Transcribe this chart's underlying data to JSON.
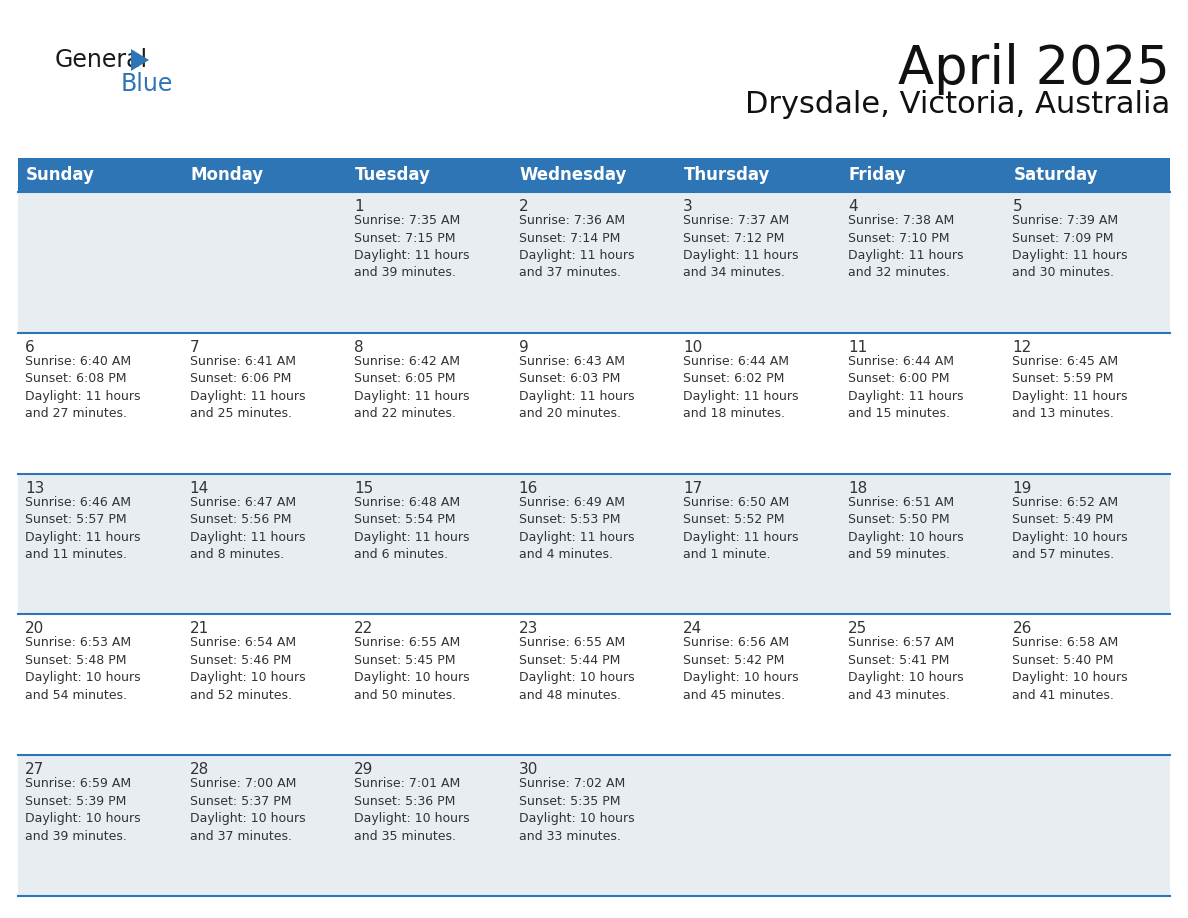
{
  "title": "April 2025",
  "subtitle": "Drysdale, Victoria, Australia",
  "header_bg": "#2e75b6",
  "header_text": "#ffffff",
  "row_line_color": "#2e75b6",
  "cell_bg_light": "#e8edf2",
  "cell_bg_white": "#ffffff",
  "text_color": "#333333",
  "days_of_week": [
    "Sunday",
    "Monday",
    "Tuesday",
    "Wednesday",
    "Thursday",
    "Friday",
    "Saturday"
  ],
  "calendar": [
    [
      {
        "day": "",
        "info": ""
      },
      {
        "day": "",
        "info": ""
      },
      {
        "day": "1",
        "info": "Sunrise: 7:35 AM\nSunset: 7:15 PM\nDaylight: 11 hours\nand 39 minutes."
      },
      {
        "day": "2",
        "info": "Sunrise: 7:36 AM\nSunset: 7:14 PM\nDaylight: 11 hours\nand 37 minutes."
      },
      {
        "day": "3",
        "info": "Sunrise: 7:37 AM\nSunset: 7:12 PM\nDaylight: 11 hours\nand 34 minutes."
      },
      {
        "day": "4",
        "info": "Sunrise: 7:38 AM\nSunset: 7:10 PM\nDaylight: 11 hours\nand 32 minutes."
      },
      {
        "day": "5",
        "info": "Sunrise: 7:39 AM\nSunset: 7:09 PM\nDaylight: 11 hours\nand 30 minutes."
      }
    ],
    [
      {
        "day": "6",
        "info": "Sunrise: 6:40 AM\nSunset: 6:08 PM\nDaylight: 11 hours\nand 27 minutes."
      },
      {
        "day": "7",
        "info": "Sunrise: 6:41 AM\nSunset: 6:06 PM\nDaylight: 11 hours\nand 25 minutes."
      },
      {
        "day": "8",
        "info": "Sunrise: 6:42 AM\nSunset: 6:05 PM\nDaylight: 11 hours\nand 22 minutes."
      },
      {
        "day": "9",
        "info": "Sunrise: 6:43 AM\nSunset: 6:03 PM\nDaylight: 11 hours\nand 20 minutes."
      },
      {
        "day": "10",
        "info": "Sunrise: 6:44 AM\nSunset: 6:02 PM\nDaylight: 11 hours\nand 18 minutes."
      },
      {
        "day": "11",
        "info": "Sunrise: 6:44 AM\nSunset: 6:00 PM\nDaylight: 11 hours\nand 15 minutes."
      },
      {
        "day": "12",
        "info": "Sunrise: 6:45 AM\nSunset: 5:59 PM\nDaylight: 11 hours\nand 13 minutes."
      }
    ],
    [
      {
        "day": "13",
        "info": "Sunrise: 6:46 AM\nSunset: 5:57 PM\nDaylight: 11 hours\nand 11 minutes."
      },
      {
        "day": "14",
        "info": "Sunrise: 6:47 AM\nSunset: 5:56 PM\nDaylight: 11 hours\nand 8 minutes."
      },
      {
        "day": "15",
        "info": "Sunrise: 6:48 AM\nSunset: 5:54 PM\nDaylight: 11 hours\nand 6 minutes."
      },
      {
        "day": "16",
        "info": "Sunrise: 6:49 AM\nSunset: 5:53 PM\nDaylight: 11 hours\nand 4 minutes."
      },
      {
        "day": "17",
        "info": "Sunrise: 6:50 AM\nSunset: 5:52 PM\nDaylight: 11 hours\nand 1 minute."
      },
      {
        "day": "18",
        "info": "Sunrise: 6:51 AM\nSunset: 5:50 PM\nDaylight: 10 hours\nand 59 minutes."
      },
      {
        "day": "19",
        "info": "Sunrise: 6:52 AM\nSunset: 5:49 PM\nDaylight: 10 hours\nand 57 minutes."
      }
    ],
    [
      {
        "day": "20",
        "info": "Sunrise: 6:53 AM\nSunset: 5:48 PM\nDaylight: 10 hours\nand 54 minutes."
      },
      {
        "day": "21",
        "info": "Sunrise: 6:54 AM\nSunset: 5:46 PM\nDaylight: 10 hours\nand 52 minutes."
      },
      {
        "day": "22",
        "info": "Sunrise: 6:55 AM\nSunset: 5:45 PM\nDaylight: 10 hours\nand 50 minutes."
      },
      {
        "day": "23",
        "info": "Sunrise: 6:55 AM\nSunset: 5:44 PM\nDaylight: 10 hours\nand 48 minutes."
      },
      {
        "day": "24",
        "info": "Sunrise: 6:56 AM\nSunset: 5:42 PM\nDaylight: 10 hours\nand 45 minutes."
      },
      {
        "day": "25",
        "info": "Sunrise: 6:57 AM\nSunset: 5:41 PM\nDaylight: 10 hours\nand 43 minutes."
      },
      {
        "day": "26",
        "info": "Sunrise: 6:58 AM\nSunset: 5:40 PM\nDaylight: 10 hours\nand 41 minutes."
      }
    ],
    [
      {
        "day": "27",
        "info": "Sunrise: 6:59 AM\nSunset: 5:39 PM\nDaylight: 10 hours\nand 39 minutes."
      },
      {
        "day": "28",
        "info": "Sunrise: 7:00 AM\nSunset: 5:37 PM\nDaylight: 10 hours\nand 37 minutes."
      },
      {
        "day": "29",
        "info": "Sunrise: 7:01 AM\nSunset: 5:36 PM\nDaylight: 10 hours\nand 35 minutes."
      },
      {
        "day": "30",
        "info": "Sunrise: 7:02 AM\nSunset: 5:35 PM\nDaylight: 10 hours\nand 33 minutes."
      },
      {
        "day": "",
        "info": ""
      },
      {
        "day": "",
        "info": ""
      },
      {
        "day": "",
        "info": ""
      }
    ]
  ],
  "logo_general_color": "#1a1a1a",
  "logo_blue_color": "#2e75b6",
  "logo_triangle_color": "#2e75b6",
  "title_fontsize": 38,
  "subtitle_fontsize": 22,
  "header_fontsize": 12,
  "day_num_fontsize": 11,
  "info_fontsize": 9
}
